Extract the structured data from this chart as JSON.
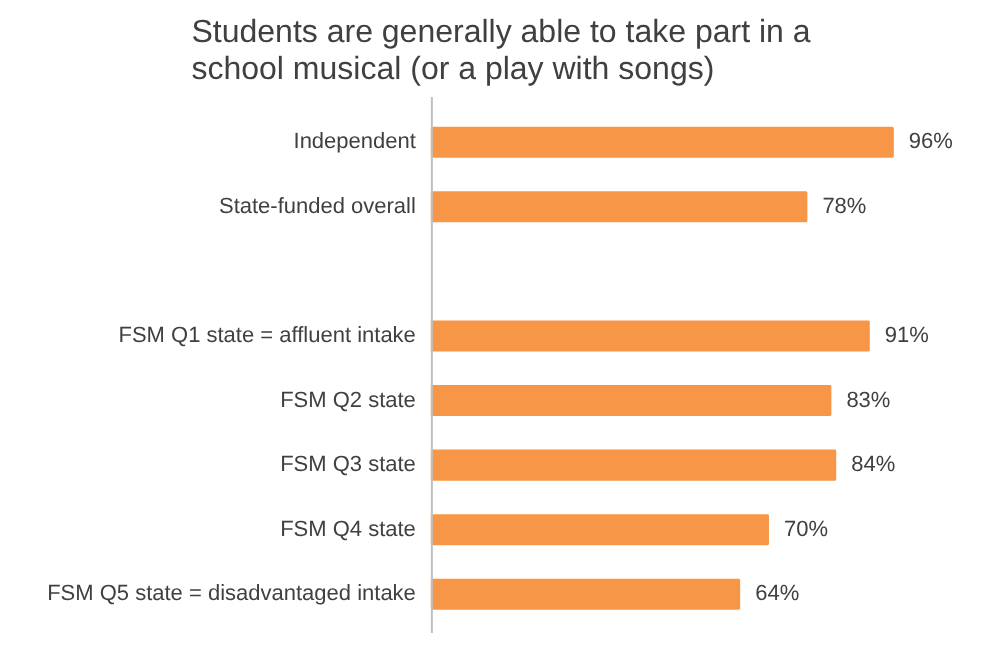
{
  "chart_data": {
    "type": "bar",
    "orientation": "horizontal",
    "title": "Students are generally able to take part in a\nschool musical (or a play with songs)",
    "categories": [
      "Independent",
      "State-funded overall",
      null,
      "FSM Q1 state = affluent intake",
      "FSM Q2 state",
      "FSM Q3 state",
      "FSM Q4 state",
      "FSM Q5 state = disadvantaged intake"
    ],
    "values": [
      96,
      78,
      null,
      91,
      83,
      84,
      70,
      64
    ],
    "value_labels": [
      "96%",
      "78%",
      null,
      "91%",
      "83%",
      "84%",
      "70%",
      "64%"
    ],
    "color": "#f79646",
    "grid": false,
    "legend": false
  }
}
